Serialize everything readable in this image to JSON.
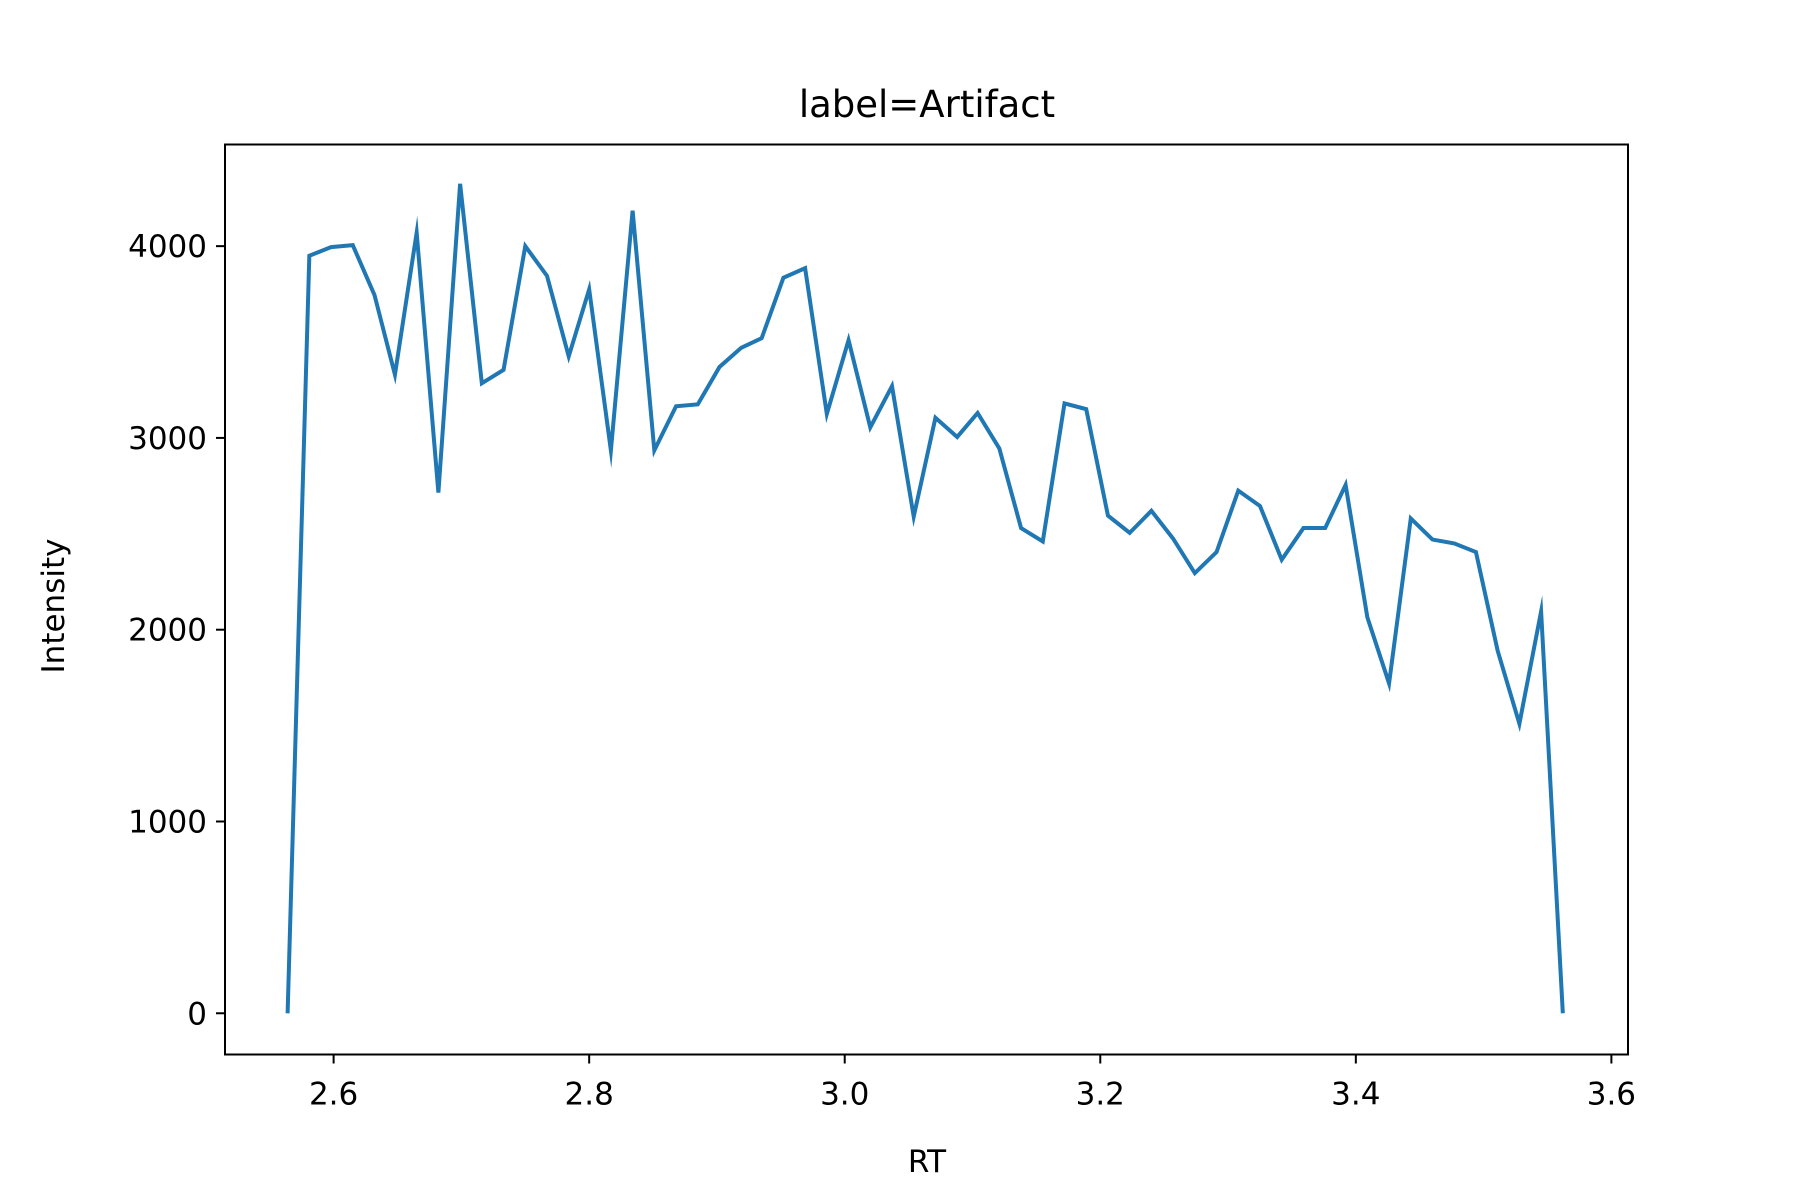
{
  "chart_data": {
    "type": "line",
    "title": "label=Artifact",
    "xlabel": "RT",
    "ylabel": "Intensity",
    "xlim": [
      2.515,
      3.613
    ],
    "ylim": [
      -215,
      4530
    ],
    "xticks": [
      2.6,
      2.8,
      3.0,
      3.2,
      3.4,
      3.6
    ],
    "xtick_labels": [
      "2.6",
      "2.8",
      "3.0",
      "3.2",
      "3.4",
      "3.6"
    ],
    "yticks": [
      0,
      1000,
      2000,
      3000,
      4000
    ],
    "ytick_labels": [
      "0",
      "1000",
      "2000",
      "3000",
      "4000"
    ],
    "grid": false,
    "series": [
      {
        "color": "#1f77b4",
        "x": [
          2.564,
          2.581,
          2.598,
          2.615,
          2.632,
          2.648,
          2.665,
          2.682,
          2.699,
          2.716,
          2.733,
          2.75,
          2.767,
          2.784,
          2.8,
          2.817,
          2.834,
          2.851,
          2.868,
          2.885,
          2.902,
          2.919,
          2.935,
          2.952,
          2.969,
          2.986,
          3.003,
          3.02,
          3.037,
          3.054,
          3.071,
          3.088,
          3.104,
          3.121,
          3.138,
          3.155,
          3.172,
          3.189,
          3.206,
          3.223,
          3.24,
          3.257,
          3.274,
          3.291,
          3.308,
          3.325,
          3.342,
          3.359,
          3.376,
          3.392,
          3.409,
          3.426,
          3.443,
          3.46,
          3.477,
          3.494,
          3.511,
          3.528,
          3.545,
          3.562
        ],
        "y": [
          0,
          3950,
          3995,
          4005,
          3745,
          3330,
          4070,
          2715,
          4325,
          3285,
          3355,
          4000,
          3845,
          3425,
          3775,
          2935,
          4185,
          2935,
          3165,
          3175,
          3370,
          3470,
          3520,
          3835,
          3885,
          3125,
          3510,
          3055,
          3270,
          2590,
          3105,
          3005,
          3130,
          2945,
          2530,
          2460,
          3180,
          3150,
          2595,
          2505,
          2620,
          2475,
          2295,
          2405,
          2725,
          2645,
          2365,
          2530,
          2530,
          2755,
          2065,
          1720,
          2580,
          2470,
          2450,
          2405,
          1890,
          1510,
          2095,
          0
        ]
      }
    ]
  }
}
